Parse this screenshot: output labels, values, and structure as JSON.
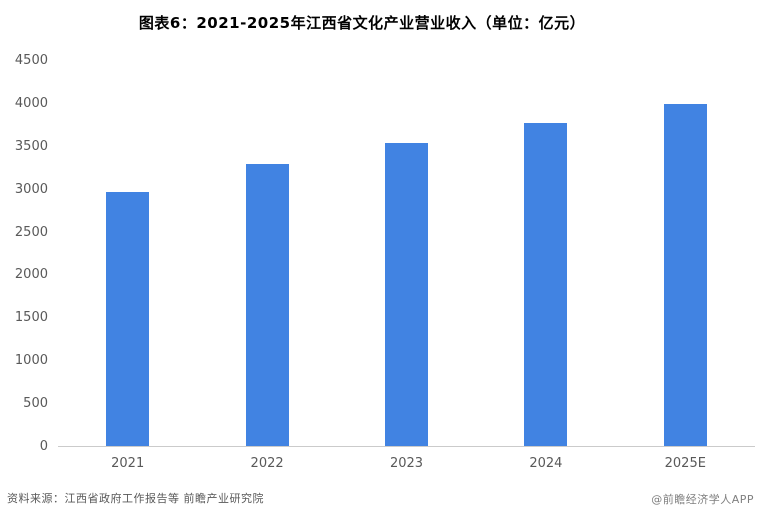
{
  "title": "图表6：2021-2025年江西省文化产业营业收入（单位：亿元）",
  "footer": {
    "source": "资料来源：江西省政府工作报告等  前瞻产业研究院",
    "watermark": "@前瞻经济学人APP"
  },
  "colors": {
    "bar": "#4183E2",
    "axis_line": "#CBCBCB",
    "tick_label": "#595959",
    "title_text": "#000000",
    "source_text": "#595959",
    "watermark_text": "#7F7F7F",
    "background": "#FFFFFF"
  },
  "chart_data": {
    "type": "bar",
    "title": "图表6：2021-2025年江西省文化产业营业收入（单位：亿元）",
    "unit": "亿元",
    "categories": [
      "2021",
      "2022",
      "2023",
      "2024",
      "2025E"
    ],
    "values": [
      2970,
      3300,
      3550,
      3780,
      4000
    ],
    "xlabel": "",
    "ylabel": "",
    "ylim": [
      0,
      4500
    ],
    "ytick_step": 500,
    "yticks": [
      0,
      500,
      1000,
      1500,
      2000,
      2500,
      3000,
      3500,
      4000,
      4500
    ],
    "grid": false,
    "legend": "none",
    "data_labels": false
  }
}
